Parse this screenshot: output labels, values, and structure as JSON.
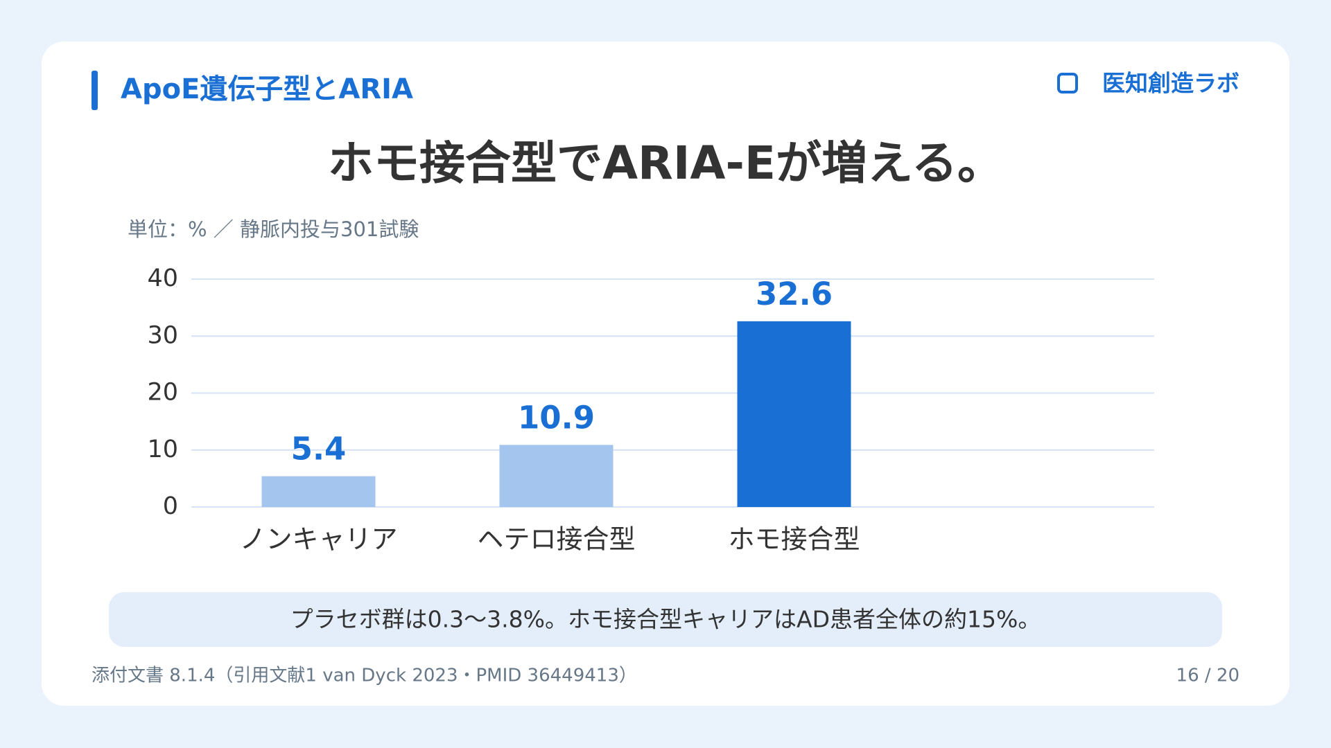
{
  "header": {
    "title": "ApoE遺伝子型とARIA",
    "brand": "医知創造ラボ"
  },
  "chart_data": {
    "type": "bar",
    "title": "ホモ接合型でARIA-Eが増える。",
    "subtitle": "単位：% ／ 静脈内投与301試験",
    "categories": [
      "ノンキャリア",
      "ヘテロ接合型",
      "ホモ接合型"
    ],
    "values": [
      5.4,
      10.9,
      32.6
    ],
    "colors": [
      "#a3c5ee",
      "#a3c5ee",
      "#1a6fd4"
    ],
    "ylim": [
      0,
      40
    ],
    "yticks": [
      0,
      10,
      20,
      30,
      40
    ],
    "grid": true
  },
  "note": "プラセボ群は0.3〜3.8%。ホモ接合型キャリアはAD患者全体の約15%。",
  "footer": {
    "source": "添付文書 8.1.4（引用文献1 van Dyck 2023・PMID 36449413）",
    "page": "16 / 20"
  }
}
